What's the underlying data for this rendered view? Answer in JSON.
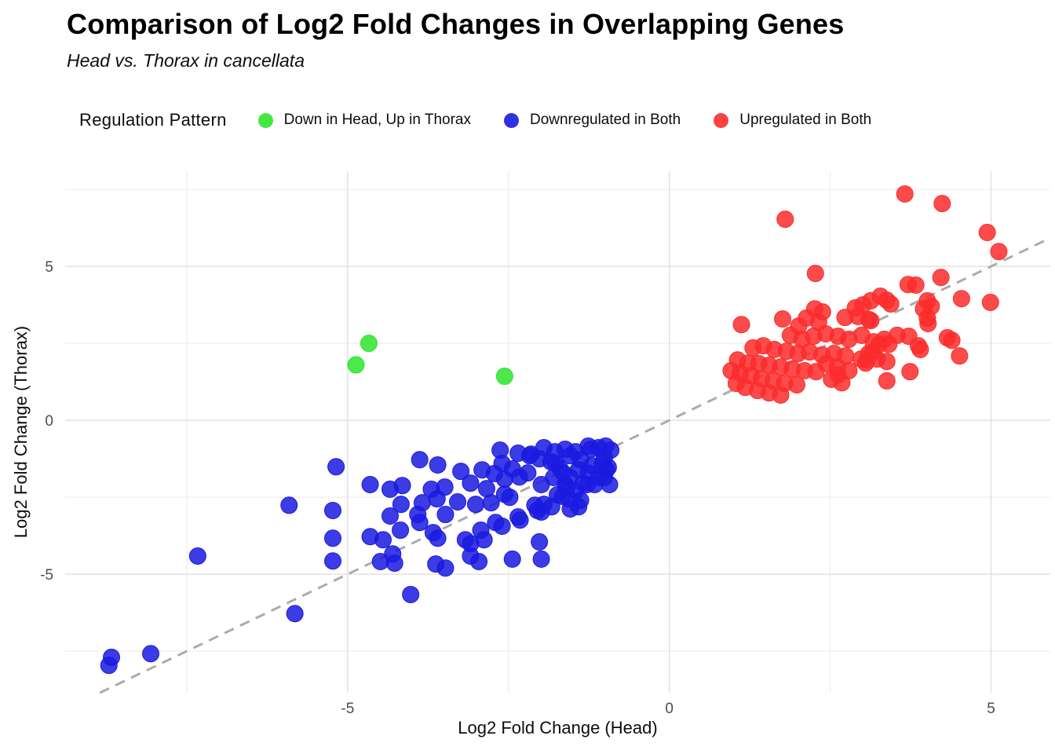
{
  "chart_data": {
    "type": "scatter",
    "title": "Comparison of Log2 Fold Changes in Overlapping Genes",
    "subtitle": "Head vs. Thorax in cancellata",
    "xlabel": "Log2 Fold Change (Head)",
    "ylabel": "Log2 Fold Change (Thorax)",
    "xlim": [
      -9.39,
      5.92
    ],
    "ylim": [
      -8.85,
      8.09
    ],
    "x_ticks": [
      {
        "value": -5,
        "label": "-5"
      },
      {
        "value": 0,
        "label": "0"
      },
      {
        "value": 5,
        "label": "5"
      }
    ],
    "y_ticks": [
      {
        "value": 5,
        "label": "5"
      },
      {
        "value": 0,
        "label": "0"
      },
      {
        "value": -5,
        "label": "-5"
      }
    ],
    "x_minor": [
      -7.5,
      -2.5,
      2.5
    ],
    "y_minor": [
      7.5,
      2.5,
      -2.5,
      -7.5
    ],
    "grid": true,
    "legend_title": "Regulation Pattern",
    "legend_position": "top",
    "identity_line": {
      "from": -8.85,
      "to": 5.92,
      "style": "dashed",
      "color": "#ABABAB"
    },
    "series": [
      {
        "name": "Down in Head, Up in Thorax",
        "color": "#2DE52D",
        "points": [
          [
            -4.67,
            2.5
          ],
          [
            -4.87,
            1.8
          ],
          [
            -2.56,
            1.43
          ]
        ]
      },
      {
        "name": "Downregulated in Both",
        "color": "#1A1AE0",
        "points": [
          [
            -8.67,
            -7.7
          ],
          [
            -8.71,
            -7.96
          ],
          [
            -8.06,
            -7.58
          ],
          [
            -5.82,
            -6.28
          ],
          [
            -5.18,
            -1.51
          ],
          [
            -4.65,
            -2.09
          ],
          [
            -5.91,
            -2.76
          ],
          [
            -5.23,
            -2.93
          ],
          [
            -4.34,
            -2.24
          ],
          [
            -4.15,
            -2.12
          ],
          [
            -4.17,
            -2.73
          ],
          [
            -4.34,
            -3.11
          ],
          [
            -5.23,
            -3.83
          ],
          [
            -4.18,
            -3.57
          ],
          [
            -4.45,
            -3.88
          ],
          [
            -7.33,
            -4.41
          ],
          [
            -5.23,
            -4.57
          ],
          [
            -4.49,
            -4.59
          ],
          [
            -4.27,
            -4.64
          ],
          [
            -3.88,
            -1.28
          ],
          [
            -3.6,
            -1.45
          ],
          [
            -3.24,
            -1.66
          ],
          [
            -2.91,
            -1.61
          ],
          [
            -3.09,
            -2.04
          ],
          [
            -2.63,
            -0.97
          ],
          [
            -2.35,
            -1.07
          ],
          [
            -2.15,
            -1.1
          ],
          [
            -2.02,
            -1.25
          ],
          [
            -2.6,
            -1.4
          ],
          [
            -2.44,
            -1.58
          ],
          [
            -2.2,
            -1.71
          ],
          [
            -2.56,
            -1.91
          ],
          [
            -2.33,
            -1.84
          ],
          [
            -2.72,
            -1.73
          ],
          [
            -2.84,
            -2.22
          ],
          [
            -2.56,
            -2.4
          ],
          [
            -3.01,
            -2.73
          ],
          [
            -2.77,
            -2.68
          ],
          [
            -3.7,
            -2.24
          ],
          [
            -3.49,
            -2.17
          ],
          [
            -3.84,
            -2.68
          ],
          [
            -3.61,
            -2.55
          ],
          [
            -3.91,
            -3.06
          ],
          [
            -3.88,
            -3.32
          ],
          [
            -3.48,
            -3.06
          ],
          [
            -3.29,
            -2.65
          ],
          [
            -3.67,
            -3.65
          ],
          [
            -3.6,
            -3.83
          ],
          [
            -3.17,
            -3.88
          ],
          [
            -3.09,
            -4.01
          ],
          [
            -2.93,
            -3.57
          ],
          [
            -2.7,
            -3.32
          ],
          [
            -2.6,
            -3.44
          ],
          [
            -2.32,
            -3.24
          ],
          [
            -1.83,
            -2.81
          ],
          [
            -1.66,
            -2.47
          ],
          [
            -1.99,
            -2.98
          ],
          [
            -2.09,
            -2.76
          ],
          [
            -1.8,
            -1.86
          ],
          [
            -1.71,
            -1.53
          ],
          [
            -1.54,
            -1.15
          ],
          [
            -1.46,
            -1.02
          ],
          [
            -1.38,
            -1.28
          ],
          [
            -1.22,
            -0.94
          ],
          [
            -1.1,
            -0.89
          ],
          [
            -1.01,
            -1.22
          ],
          [
            -0.98,
            -1.61
          ],
          [
            -1.1,
            -1.86
          ],
          [
            -1.26,
            -1.71
          ],
          [
            -1.54,
            -1.86
          ],
          [
            -1.62,
            -2.09
          ],
          [
            -1.46,
            -2.3
          ],
          [
            -1.28,
            -2.09
          ],
          [
            -1.54,
            -2.88
          ],
          [
            -1.41,
            -2.81
          ],
          [
            -1.78,
            -1.02
          ],
          [
            -1.95,
            -0.89
          ],
          [
            -3.63,
            -4.67
          ],
          [
            -2.96,
            -4.59
          ],
          [
            -2.44,
            -4.51
          ],
          [
            -1.62,
            -0.94
          ],
          [
            -1.26,
            -0.84
          ],
          [
            -0.99,
            -0.84
          ],
          [
            -0.91,
            -0.97
          ],
          [
            -1.41,
            -1.61
          ],
          [
            -1.2,
            -1.48
          ],
          [
            -1.04,
            -1.4
          ],
          [
            -0.95,
            -1.53
          ],
          [
            -1.01,
            -1.86
          ],
          [
            -0.93,
            -2.09
          ],
          [
            -1.16,
            -2.09
          ],
          [
            -1.34,
            -2.04
          ],
          [
            -1.59,
            -2.17
          ],
          [
            -1.74,
            -2.42
          ],
          [
            -1.56,
            -2.55
          ],
          [
            -1.38,
            -2.6
          ],
          [
            -1.84,
            -1.35
          ],
          [
            -1.99,
            -2.09
          ],
          [
            -1.95,
            -2.73
          ],
          [
            -2.35,
            -3.14
          ],
          [
            -2.05,
            -2.93
          ],
          [
            -2.17,
            -1.15
          ],
          [
            -2.48,
            -2.5
          ],
          [
            -1.77,
            -1.4
          ],
          [
            -1.65,
            -1.71
          ],
          [
            -4.3,
            -4.34
          ],
          [
            -3.48,
            -4.8
          ],
          [
            -4.02,
            -5.66
          ],
          [
            -2.02,
            -3.95
          ],
          [
            -1.99,
            -4.51
          ],
          [
            -3.09,
            -4.41
          ],
          [
            -2.88,
            -3.88
          ],
          [
            -4.65,
            -3.78
          ]
        ]
      },
      {
        "name": "Upregulated in Both",
        "color": "#FC2C2C",
        "points": [
          [
            1.12,
            3.11
          ],
          [
            1.76,
            3.29
          ],
          [
            2.01,
            3.06
          ],
          [
            2.32,
            3.19
          ],
          [
            2.73,
            3.34
          ],
          [
            2.93,
            3.37
          ],
          [
            3.1,
            3.27
          ],
          [
            1.88,
            2.76
          ],
          [
            2.06,
            2.63
          ],
          [
            2.24,
            2.73
          ],
          [
            2.43,
            2.81
          ],
          [
            2.62,
            2.73
          ],
          [
            2.79,
            2.63
          ],
          [
            2.99,
            2.76
          ],
          [
            3.17,
            2.55
          ],
          [
            3.34,
            2.63
          ],
          [
            3.41,
            2.47
          ],
          [
            1.3,
            2.35
          ],
          [
            1.46,
            2.42
          ],
          [
            1.63,
            2.3
          ],
          [
            1.82,
            2.24
          ],
          [
            2.0,
            2.17
          ],
          [
            2.18,
            2.22
          ],
          [
            2.37,
            2.12
          ],
          [
            2.56,
            2.17
          ],
          [
            2.74,
            2.09
          ],
          [
            1.06,
            1.96
          ],
          [
            1.22,
            1.86
          ],
          [
            1.39,
            1.84
          ],
          [
            1.55,
            1.79
          ],
          [
            1.73,
            1.73
          ],
          [
            1.91,
            1.66
          ],
          [
            2.1,
            1.61
          ],
          [
            2.28,
            1.58
          ],
          [
            0.96,
            1.61
          ],
          [
            1.1,
            1.53
          ],
          [
            1.27,
            1.45
          ],
          [
            1.43,
            1.35
          ],
          [
            1.61,
            1.28
          ],
          [
            1.79,
            1.2
          ],
          [
            1.98,
            1.15
          ],
          [
            1.04,
            1.2
          ],
          [
            1.18,
            1.07
          ],
          [
            1.37,
            0.97
          ],
          [
            1.55,
            0.89
          ],
          [
            1.73,
            0.82
          ],
          [
            2.44,
            1.84
          ],
          [
            2.61,
            1.73
          ],
          [
            2.79,
            1.61
          ],
          [
            2.98,
            1.99
          ],
          [
            3.05,
            1.86
          ],
          [
            3.23,
            1.99
          ],
          [
            3.38,
            1.91
          ],
          [
            3.1,
            2.17
          ],
          [
            2.52,
            1.33
          ],
          [
            2.68,
            1.22
          ],
          [
            2.62,
            1.48
          ],
          [
            3.38,
            1.28
          ],
          [
            3.71,
            4.41
          ],
          [
            3.83,
            4.39
          ],
          [
            4.22,
            4.64
          ],
          [
            3.38,
            3.9
          ],
          [
            3.44,
            3.78
          ],
          [
            3.13,
            3.88
          ],
          [
            4.01,
            3.88
          ],
          [
            4.07,
            3.7
          ],
          [
            3.95,
            3.62
          ],
          [
            4.54,
            3.95
          ],
          [
            4.99,
            3.83
          ],
          [
            3.13,
            3.24
          ],
          [
            4.01,
            3.32
          ],
          [
            4.02,
            3.14
          ],
          [
            3.54,
            2.76
          ],
          [
            3.72,
            2.73
          ],
          [
            3.26,
            2.47
          ],
          [
            3.16,
            2.22
          ],
          [
            3.87,
            2.42
          ],
          [
            3.9,
            2.3
          ],
          [
            4.32,
            2.68
          ],
          [
            4.39,
            2.6
          ],
          [
            4.51,
            2.09
          ],
          [
            3.74,
            1.58
          ],
          [
            3.07,
            1.96
          ],
          [
            1.8,
            6.53
          ],
          [
            3.66,
            7.35
          ],
          [
            4.24,
            7.04
          ],
          [
            4.94,
            6.1
          ],
          [
            5.12,
            5.48
          ],
          [
            2.27,
            4.77
          ],
          [
            2.26,
            3.62
          ],
          [
            2.38,
            3.52
          ],
          [
            2.13,
            3.32
          ],
          [
            2.89,
            3.65
          ],
          [
            3.01,
            3.75
          ],
          [
            3.28,
            4.03
          ]
        ]
      }
    ]
  }
}
